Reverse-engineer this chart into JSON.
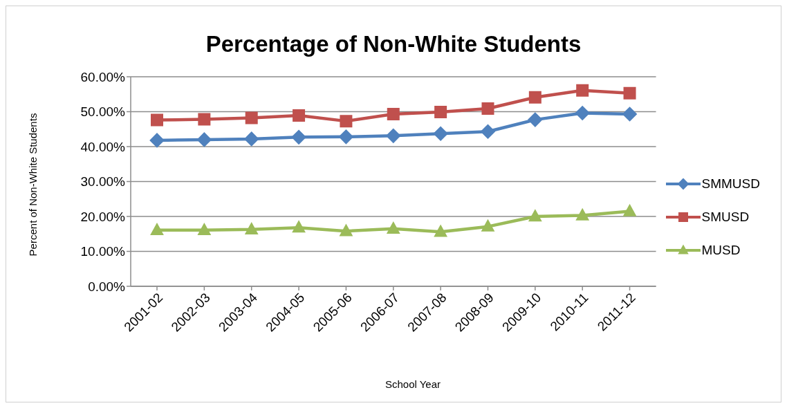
{
  "chart_data": {
    "type": "line",
    "title": "Percentage of Non-White Students",
    "xlabel": "School Year",
    "ylabel": "Percent of Non-White Students",
    "categories": [
      "2001-02",
      "2002-03",
      "2003-04",
      "2004-05",
      "2005-06",
      "2006-07",
      "2007-08",
      "2008-09",
      "2009-10",
      "2010-11",
      "2011-12"
    ],
    "series": [
      {
        "name": "SMMUSD",
        "color": "#4f81bd",
        "marker": "diamond",
        "values": [
          41.8,
          42.0,
          42.2,
          42.7,
          42.8,
          43.1,
          43.7,
          44.3,
          47.7,
          49.6,
          49.3
        ]
      },
      {
        "name": "SMUSD",
        "color": "#c0504d",
        "marker": "square",
        "values": [
          47.6,
          47.8,
          48.2,
          48.9,
          47.3,
          49.3,
          49.9,
          50.9,
          54.1,
          56.1,
          55.3
        ]
      },
      {
        "name": "MUSD",
        "color": "#9bbb59",
        "marker": "triangle",
        "values": [
          16.1,
          16.1,
          16.3,
          16.8,
          15.8,
          16.5,
          15.6,
          17.1,
          20.0,
          20.3,
          21.5
        ]
      }
    ],
    "ylim": [
      0,
      60
    ],
    "yticks": [
      {
        "value": 0,
        "label": "0.00%"
      },
      {
        "value": 10,
        "label": "10.00%"
      },
      {
        "value": 20,
        "label": "20.00%"
      },
      {
        "value": 30,
        "label": "30.00%"
      },
      {
        "value": 40,
        "label": "40.00%"
      },
      {
        "value": 50,
        "label": "50.00%"
      },
      {
        "value": 60,
        "label": "60.00%"
      }
    ],
    "grid": "y",
    "legend": "right",
    "line_style": "solid"
  }
}
